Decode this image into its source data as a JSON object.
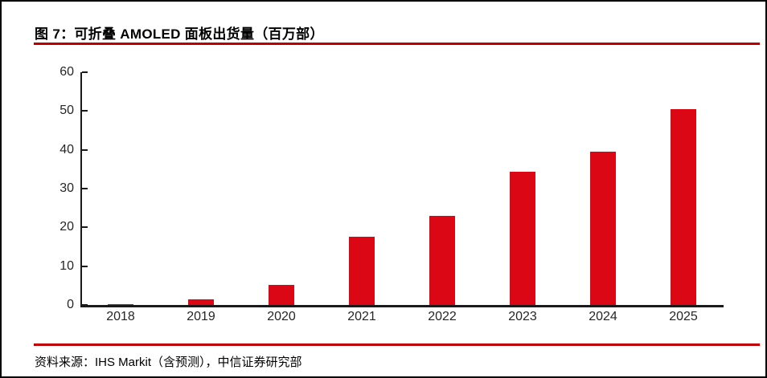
{
  "figure": {
    "title": "图 7：可折叠 AMOLED 面板出货量（百万部）",
    "source": "资料来源：IHS Markit（含预测），中信证券研究部"
  },
  "colors": {
    "bar_red": "#db0714",
    "rule_red": "#c00000",
    "axis_black": "#1a1a1a",
    "frame_black": "#000000"
  },
  "chart_data": {
    "type": "bar",
    "title": "可折叠 AMOLED 面板出货量（百万部）",
    "categories": [
      "2018",
      "2019",
      "2020",
      "2021",
      "2022",
      "2023",
      "2024",
      "2025"
    ],
    "values": [
      0.2,
      1.4,
      5.2,
      17.5,
      23.0,
      34.3,
      39.5,
      50.5
    ],
    "xlabel": "",
    "ylabel": "",
    "ylim": [
      0,
      60
    ],
    "yticks": [
      0,
      10,
      20,
      30,
      40,
      50,
      60
    ],
    "grid": false,
    "legend": false,
    "bar_color": "#db0714"
  }
}
